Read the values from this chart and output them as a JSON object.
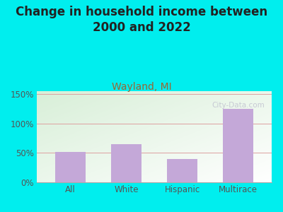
{
  "title": "Change in household income between\n2000 and 2022",
  "subtitle": "Wayland, MI",
  "categories": [
    "All",
    "White",
    "Hispanic",
    "Multirace"
  ],
  "values": [
    52,
    65,
    40,
    125
  ],
  "bar_color": "#C4A8D8",
  "background_color": "#00EEEE",
  "plot_bg_color_topleft": "#d8efd8",
  "plot_bg_color_right": "#f0f8f0",
  "plot_bg_color_bottom": "#e8f4e8",
  "title_fontsize": 12,
  "subtitle_fontsize": 10,
  "subtitle_color": "#996633",
  "tick_label_color": "#555555",
  "ylabel_ticks": [
    0,
    50,
    100,
    150
  ],
  "ylim": [
    0,
    155
  ],
  "watermark": "City-Data.com",
  "grid_color": "#dda0a0",
  "grid_linewidth": 0.7
}
